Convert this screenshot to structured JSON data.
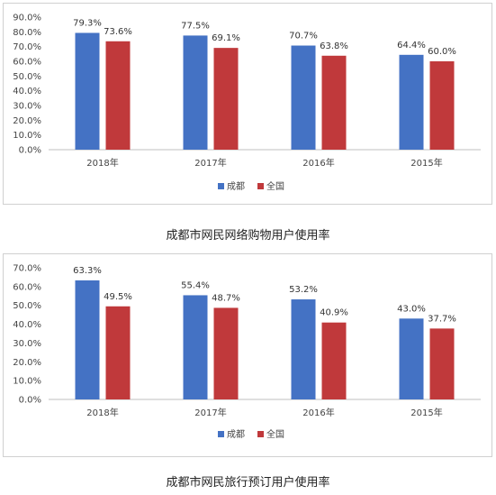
{
  "chart_data": [
    {
      "type": "bar",
      "title": "成都市网民网络购物用户使用率",
      "categories": [
        "2018年",
        "2017年",
        "2016年",
        "2015年"
      ],
      "series": [
        {
          "name": "成都",
          "values": [
            79.3,
            77.5,
            70.7,
            64.4
          ],
          "labels": [
            "79.3%",
            "77.5%",
            "70.7%",
            "64.4%"
          ],
          "color": "#4472C4"
        },
        {
          "name": "全国",
          "values": [
            73.6,
            69.1,
            63.8,
            60.0
          ],
          "labels": [
            "73.6%",
            "69.1%",
            "63.8%",
            "60.0%"
          ],
          "color": "#C0393B"
        }
      ],
      "ylim": [
        0,
        90
      ],
      "yticks": [
        "90.0%",
        "80.0%",
        "70.0%",
        "60.0%",
        "50.0%",
        "40.0%",
        "30.0%",
        "20.0%",
        "10.0%",
        "0.0%"
      ],
      "legend": "bottom",
      "grid": false
    },
    {
      "type": "bar",
      "title": "成都市网民旅行预订用户使用率",
      "categories": [
        "2018年",
        "2017年",
        "2016年",
        "2015年"
      ],
      "series": [
        {
          "name": "成都",
          "values": [
            63.3,
            55.4,
            53.2,
            43.0
          ],
          "labels": [
            "63.3%",
            "55.4%",
            "53.2%",
            "43.0%"
          ],
          "color": "#4472C4"
        },
        {
          "name": "全国",
          "values": [
            49.5,
            48.7,
            40.9,
            37.7
          ],
          "labels": [
            "49.5%",
            "48.7%",
            "40.9%",
            "37.7%"
          ],
          "color": "#C0393B"
        }
      ],
      "ylim": [
        0,
        70
      ],
      "yticks": [
        "70.0%",
        "60.0%",
        "50.0%",
        "40.0%",
        "30.0%",
        "20.0%",
        "10.0%",
        "0.0%"
      ],
      "legend": "bottom",
      "grid": false
    }
  ]
}
